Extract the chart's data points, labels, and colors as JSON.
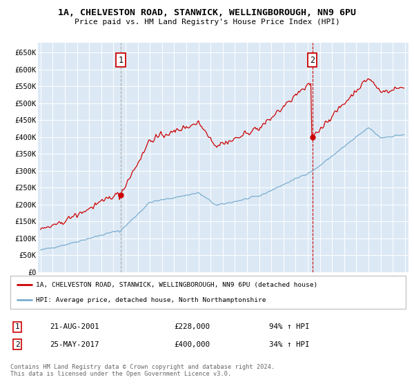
{
  "title": "1A, CHELVESTON ROAD, STANWICK, WELLINGBOROUGH, NN9 6PU",
  "subtitle": "Price paid vs. HM Land Registry's House Price Index (HPI)",
  "background_color": "#dce9f5",
  "plot_bg_color": "#dce9f5",
  "red_color": "#cc0000",
  "blue_color": "#7aadcf",
  "ylabel_ticks": [
    "£0",
    "£50K",
    "£100K",
    "£150K",
    "£200K",
    "£250K",
    "£300K",
    "£350K",
    "£400K",
    "£450K",
    "£500K",
    "£550K",
    "£600K",
    "£650K"
  ],
  "ytick_values": [
    0,
    50000,
    100000,
    150000,
    200000,
    250000,
    300000,
    350000,
    400000,
    450000,
    500000,
    550000,
    600000,
    650000
  ],
  "legend_line1": "1A, CHELVESTON ROAD, STANWICK, WELLINGBOROUGH, NN9 6PU (detached house)",
  "legend_line2": "HPI: Average price, detached house, North Northamptonshire",
  "note1_label": "1",
  "note1_date": "21-AUG-2001",
  "note1_price": "£228,000",
  "note1_pct": "94% ↑ HPI",
  "note2_label": "2",
  "note2_date": "25-MAY-2017",
  "note2_price": "£400,000",
  "note2_pct": "34% ↑ HPI",
  "footer": "Contains HM Land Registry data © Crown copyright and database right 2024.\nThis data is licensed under the Open Government Licence v3.0.",
  "sale1_year": 2001.622,
  "sale2_year": 2017.372,
  "sale1_price": 228000,
  "sale2_price": 400000
}
